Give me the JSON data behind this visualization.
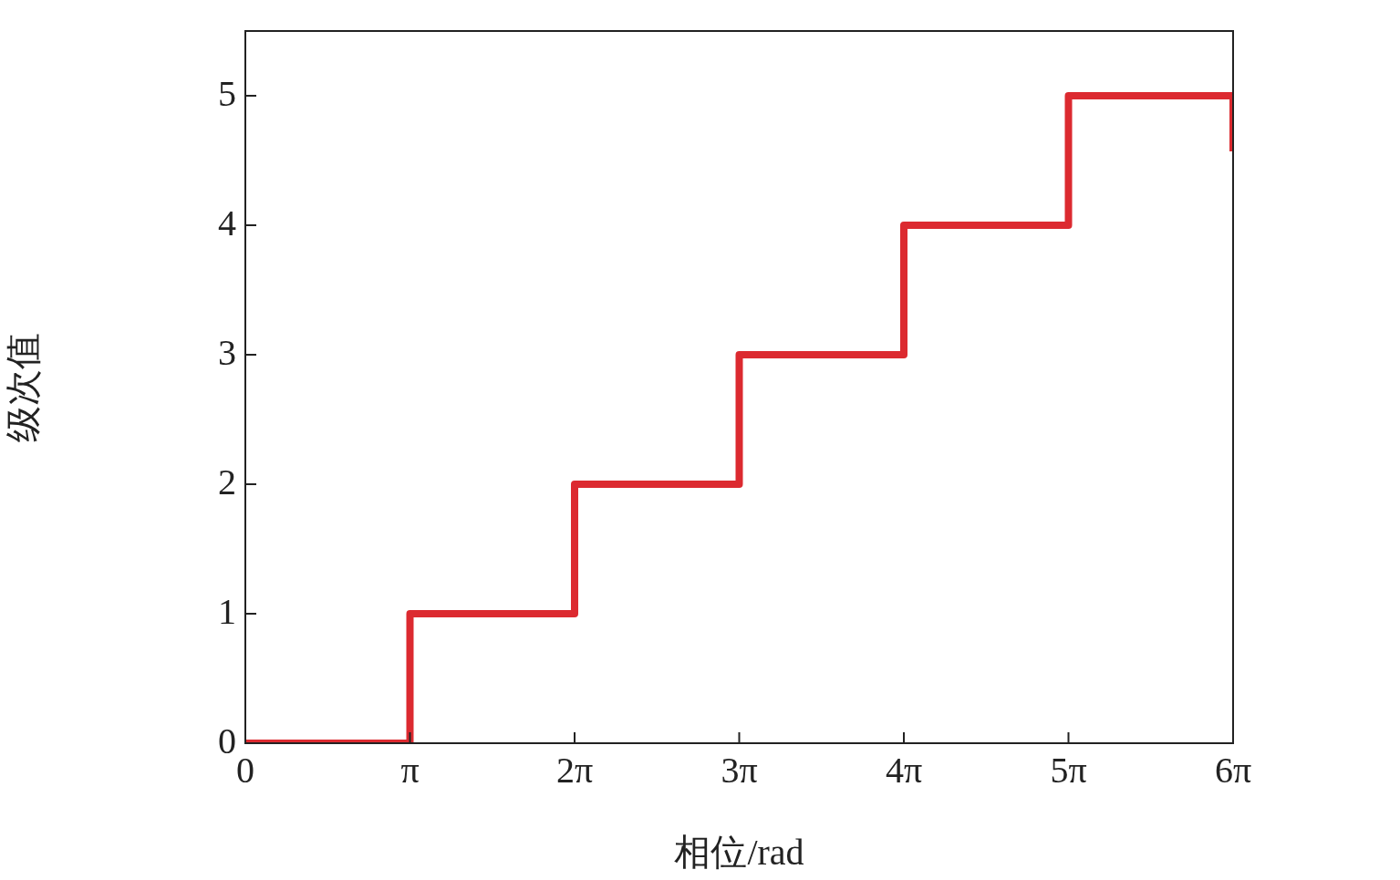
{
  "chart_data": {
    "type": "step",
    "xlabel": "相位/rad",
    "ylabel": "级次值",
    "x": [
      0,
      3.14159,
      6.28319,
      9.42478,
      12.56637,
      15.70796,
      18.84956,
      18.84956
    ],
    "series": [
      {
        "color": "#dc2a30",
        "values": [
          0,
          1,
          2,
          3,
          4,
          5,
          5,
          4.57
        ]
      }
    ],
    "xlim": [
      0,
      18.84956
    ],
    "ylim": [
      0,
      5.5
    ],
    "xticks": [
      0,
      {
        "value": 3.14159,
        "label": "π"
      },
      {
        "value": 6.28319,
        "label": "2π"
      },
      {
        "value": 9.42478,
        "label": "3π"
      },
      {
        "value": 12.56637,
        "label": "4π"
      },
      {
        "value": 15.70796,
        "label": "5π"
      },
      {
        "value": 18.84956,
        "label": "6π"
      }
    ],
    "yticks": [
      0,
      1,
      2,
      3,
      4,
      5
    ],
    "grid": false,
    "legend": false,
    "marker": "none",
    "line_style": "solid"
  }
}
